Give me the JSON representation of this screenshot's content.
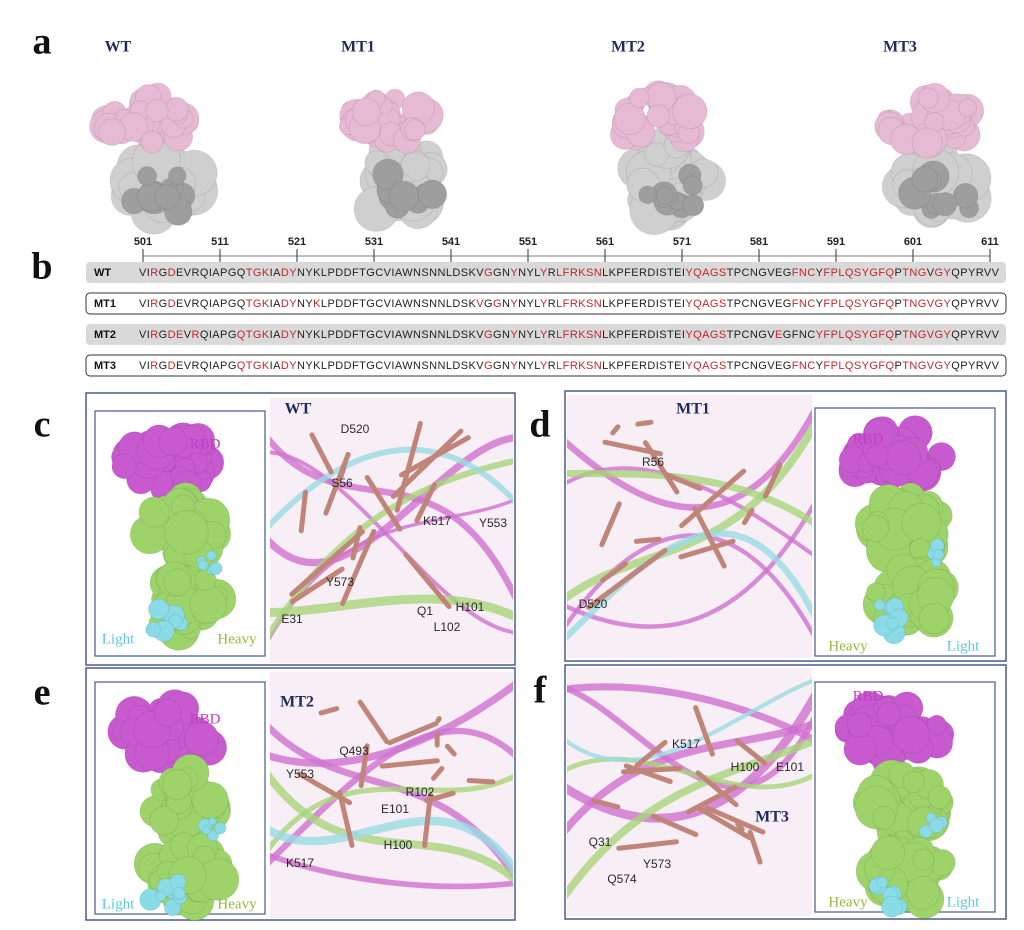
{
  "panel_a": {
    "label": "a",
    "structures": [
      "WT",
      "MT1",
      "MT2",
      "MT3"
    ]
  },
  "panel_b": {
    "label": "b",
    "ruler": [
      501,
      511,
      521,
      531,
      541,
      551,
      561,
      571,
      581,
      591,
      601,
      611
    ],
    "rows": [
      {
        "name": "WT",
        "segments": [
          "VI",
          "R",
          "G",
          "D",
          "EVRQIAPGQ",
          "TGK",
          "IA",
          "DY",
          "NYKLPDDFTGCVIAWNSNNLDSKV",
          "G",
          "GN",
          "Y",
          "NYL",
          "Y",
          "R",
          "LFRKSN",
          "LKPFERDISTEI",
          "YQAGS",
          "TPCNGVEG",
          "FNC",
          "Y",
          "FP",
          "",
          "LQSYGFQ",
          "P",
          "TNG",
          "V",
          "GY",
          "QPYRVV"
        ]
      },
      {
        "name": "MT1",
        "segments": [
          "VI",
          "R",
          "G",
          "D",
          "EVRQIAPGQ",
          "TGK",
          "IA",
          "DY",
          "NY",
          "K",
          "LPDDFTGCVIAWNSNNLDSK",
          "V",
          "G",
          "G",
          "N",
          "Y",
          "NYL",
          "Y",
          "R",
          "LFRKSN",
          "LKPFERDISTEI",
          "YQAGS",
          "TPCNGVEG",
          "FNC",
          "Y",
          "FP",
          "",
          "LQSYGFQ",
          "P",
          "TNGVGY",
          "QPYRVV"
        ]
      },
      {
        "name": "MT2",
        "segments": [
          "VI",
          "R",
          "G",
          "D",
          "",
          "E",
          "V",
          "R",
          "QIAPG",
          "QTGK",
          "IA",
          "DY",
          "NYKLPDDFTGCVIAWNSNNLDSKV",
          "G",
          "GN",
          "Y",
          "NYL",
          "Y",
          "R",
          "LFRKSN",
          "LKPFERDISTEI",
          "YQAGS",
          "TPCNGV",
          "E",
          "GFNC",
          "YF",
          "",
          "PLQSYGFQ",
          "P",
          "TNGVGY",
          "QPYRVV"
        ]
      },
      {
        "name": "MT3",
        "segments": [
          "VI",
          "R",
          "G",
          "D",
          "EVRQIAPG",
          "QTGK",
          "IA",
          "DY",
          "NYKLPDDFTGCVIAWNSNNLDSKV",
          "G",
          "GN",
          "Y",
          "NYL",
          "Y",
          "R",
          "LFRKSN",
          "LKPFERDISTEI",
          "YQAGS",
          "TPCNGVEG",
          "FNC",
          "Y",
          "FP",
          "",
          "LQSYGFQ",
          "P",
          "TNGVGY",
          "QPYRVV"
        ]
      }
    ]
  },
  "panel_c": {
    "label": "c",
    "title": "WT",
    "inset": [
      "RBD",
      "Light",
      "Heavy"
    ],
    "residues": [
      "D520",
      "S56",
      "K517",
      "Y553",
      "Y573",
      "E31",
      "Q1",
      "H101",
      "L102"
    ]
  },
  "panel_d": {
    "label": "d",
    "title": "MT1",
    "inset": [
      "RBD",
      "Heavy",
      "Light"
    ],
    "residues": [
      "R56",
      "D520"
    ]
  },
  "panel_e": {
    "label": "e",
    "title": "MT2",
    "inset": [
      "RBD",
      "Light",
      "Heavy"
    ],
    "residues": [
      "Q493",
      "Y553",
      "R102",
      "E101",
      "H100",
      "K517"
    ]
  },
  "panel_f": {
    "label": "f",
    "title": "MT3",
    "inset": [
      "RBD",
      "Heavy",
      "Light"
    ],
    "residues": [
      "K517",
      "H100",
      "E101",
      "Q31",
      "Y573",
      "Q574"
    ]
  }
}
